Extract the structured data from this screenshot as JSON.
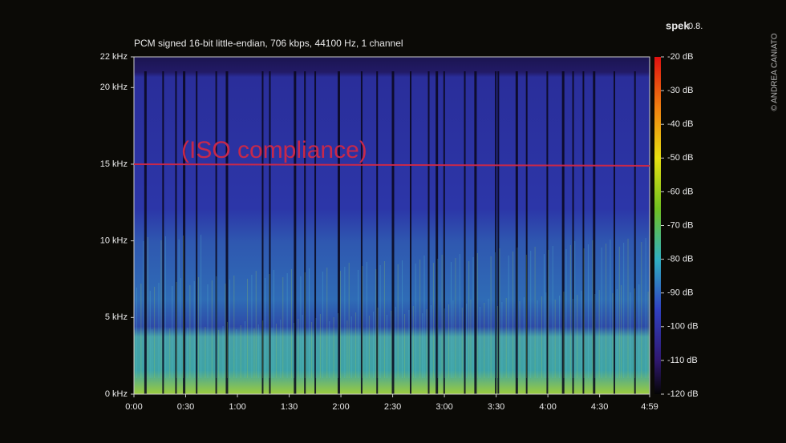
{
  "chart_data": {
    "type": "spectrogram",
    "title": "PCM signed 16-bit little-endian, 706 kbps, 44100 Hz, 1 channel",
    "app_name": "spek",
    "app_version": "0.8.",
    "credit": "© ANDREA CANIATO",
    "annotation": {
      "text": "(ISO compliance)",
      "value": 15,
      "color": "#c8284a"
    },
    "xlim": [
      0,
      299
    ],
    "xticks": [
      {
        "value": 0,
        "label": "0:00"
      },
      {
        "value": 30,
        "label": "0:30"
      },
      {
        "value": 60,
        "label": "1:00"
      },
      {
        "value": 90,
        "label": "1:30"
      },
      {
        "value": 120,
        "label": "2:00"
      },
      {
        "value": 150,
        "label": "2:30"
      },
      {
        "value": 180,
        "label": "3:00"
      },
      {
        "value": 210,
        "label": "3:30"
      },
      {
        "value": 240,
        "label": "4:00"
      },
      {
        "value": 270,
        "label": "4:30"
      },
      {
        "value": 299,
        "label": "4:59"
      }
    ],
    "ylim": [
      0,
      22
    ],
    "yticks": [
      {
        "value": 0,
        "label": "0 kHz"
      },
      {
        "value": 5,
        "label": "5 kHz"
      },
      {
        "value": 10,
        "label": "10 kHz"
      },
      {
        "value": 15,
        "label": "15 kHz"
      },
      {
        "value": 20,
        "label": "20 kHz"
      },
      {
        "value": 22,
        "label": "22 kHz"
      }
    ],
    "clim": [
      -120,
      -20
    ],
    "cticks": [
      {
        "value": -20,
        "label": "-20 dB"
      },
      {
        "value": -30,
        "label": "-30 dB"
      },
      {
        "value": -40,
        "label": "-40 dB"
      },
      {
        "value": -50,
        "label": "-50 dB"
      },
      {
        "value": -60,
        "label": "-60 dB"
      },
      {
        "value": -70,
        "label": "-70 dB"
      },
      {
        "value": -80,
        "label": "-80 dB"
      },
      {
        "value": -90,
        "label": "-90 dB"
      },
      {
        "value": -100,
        "label": "-100 dB"
      },
      {
        "value": -110,
        "label": "-110 dB"
      },
      {
        "value": -120,
        "label": "-120 dB"
      }
    ]
  }
}
